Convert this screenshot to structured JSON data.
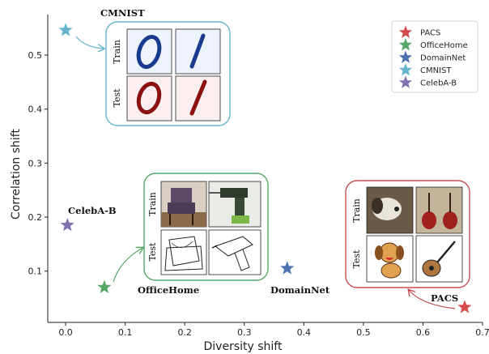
{
  "chart_data": {
    "type": "scatter",
    "xlabel": "Diversity shift",
    "ylabel": "Correlation shift",
    "xlim": [
      -0.03,
      0.7
    ],
    "ylim": [
      0.005,
      0.575
    ],
    "xticks": [
      "0.0",
      "0.1",
      "0.2",
      "0.3",
      "0.4",
      "0.5",
      "0.6",
      "0.7"
    ],
    "yticks": [
      "0.1",
      "0.2",
      "0.3",
      "0.4",
      "0.5"
    ],
    "grid": false,
    "legend_position": "top-right",
    "series": [
      {
        "name": "PACS",
        "color": "#d44c4e",
        "x": 0.67,
        "y": 0.033
      },
      {
        "name": "OfficeHome",
        "color": "#55a868",
        "x": 0.065,
        "y": 0.07
      },
      {
        "name": "DomainNet",
        "color": "#4c72b0",
        "x": 0.372,
        "y": 0.105
      },
      {
        "name": "CMNIST",
        "color": "#64b5cd",
        "x": 0.0,
        "y": 0.546
      },
      {
        "name": "CelebA-B",
        "color": "#8172b2",
        "x": 0.003,
        "y": 0.185
      }
    ],
    "annotations": {
      "cmnist": "CMNIST",
      "celeba": "CelebA-B",
      "officehome": "OfficeHome",
      "domainnet": "DomainNet",
      "pacs": "PACS"
    },
    "inset_labels": {
      "train": "Train",
      "test": "Test"
    }
  }
}
